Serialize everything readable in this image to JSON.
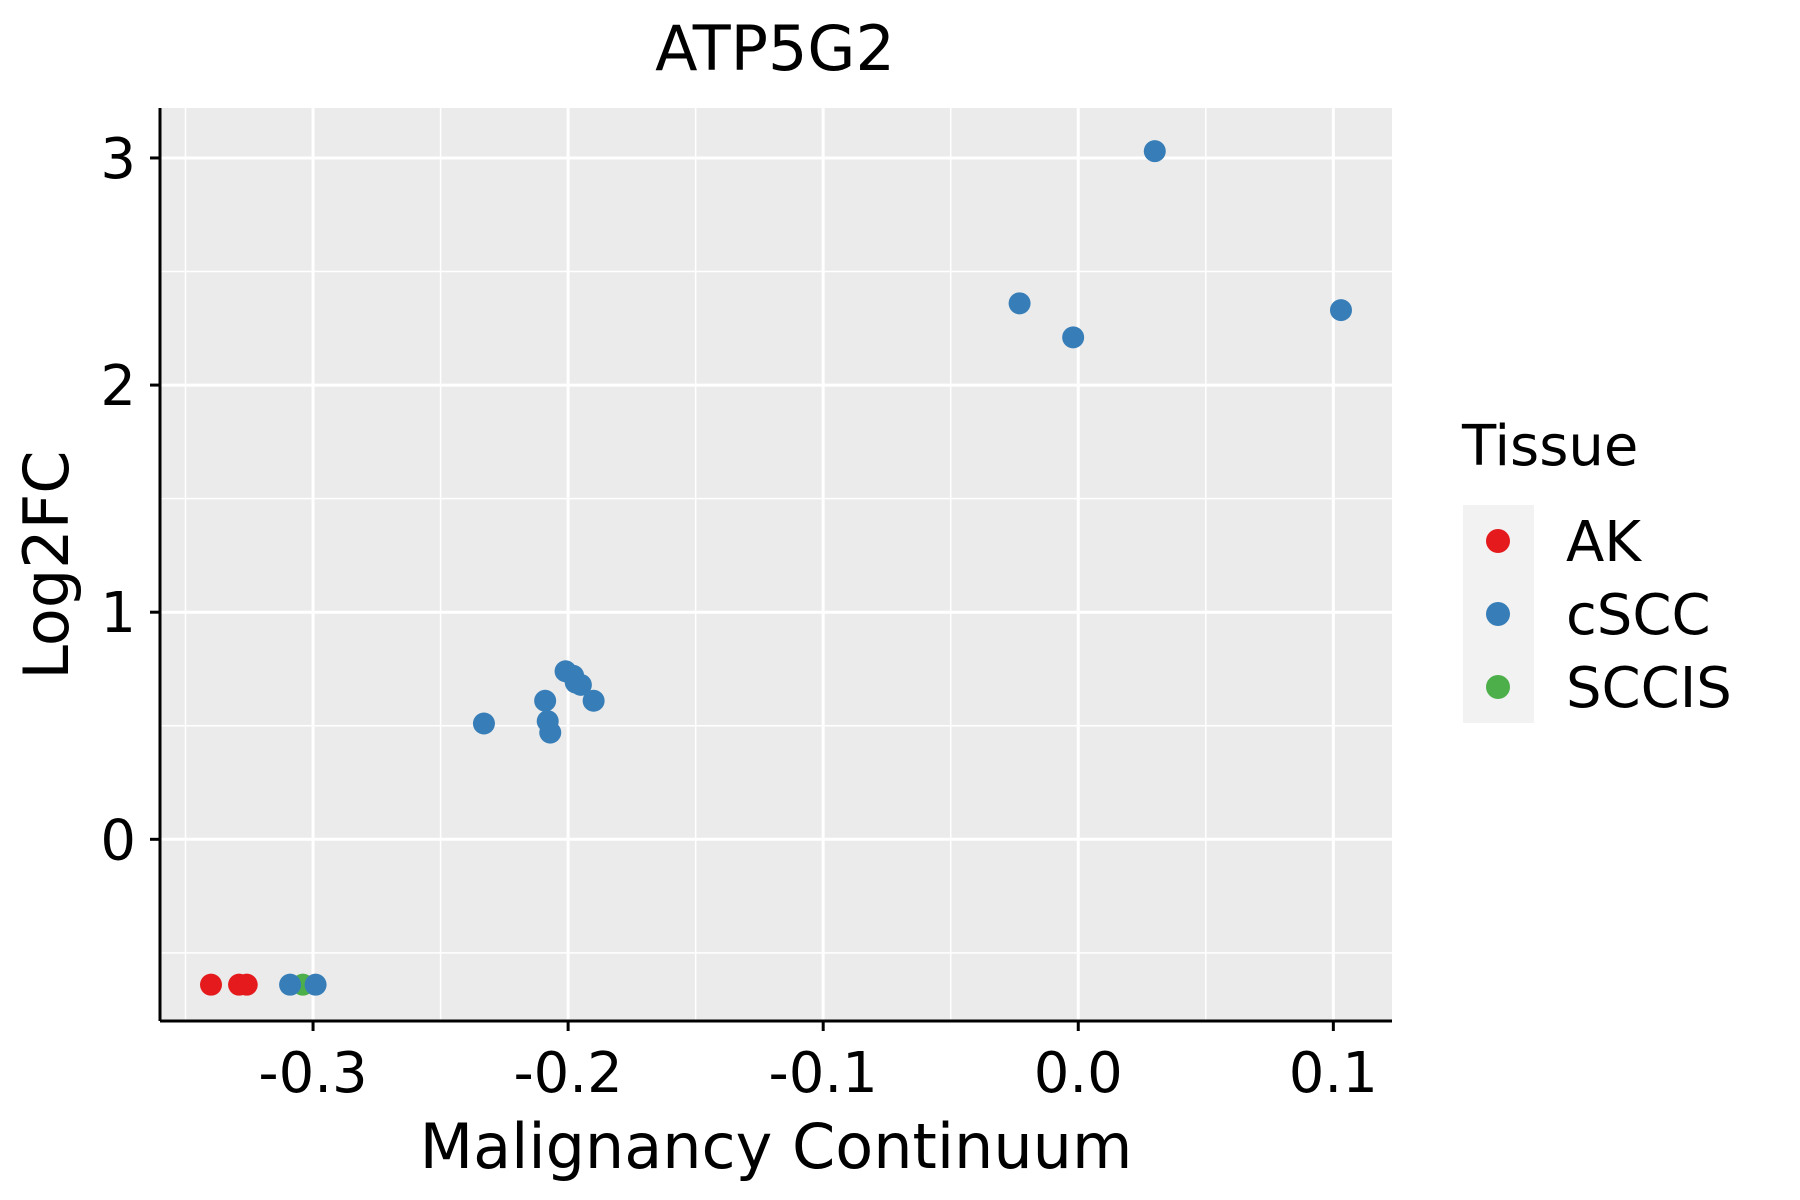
{
  "chart_data": {
    "type": "scatter",
    "title": "ATP5G2",
    "xlabel": "Malignancy Continuum",
    "ylabel": "Log2FC",
    "xlim": [
      -0.36,
      0.123
    ],
    "ylim": [
      -0.8,
      3.22
    ],
    "x_ticks": [
      -0.3,
      -0.2,
      -0.1,
      0.0,
      0.1
    ],
    "x_tick_labels": [
      "-0.3",
      "-0.2",
      "-0.1",
      "0.0",
      "0.1"
    ],
    "y_ticks": [
      0,
      1,
      2,
      3
    ],
    "y_tick_labels": [
      "0",
      "1",
      "2",
      "3"
    ],
    "grid": true,
    "legend": {
      "title": "Tissue",
      "position": "right",
      "entries": [
        {
          "label": "AK",
          "color": "#E41A1C"
        },
        {
          "label": "cSCC",
          "color": "#377EB8"
        },
        {
          "label": "SCCIS",
          "color": "#4DAF4A"
        }
      ]
    },
    "series": [
      {
        "name": "AK",
        "color": "#E41A1C",
        "points": [
          {
            "x": -0.34,
            "y": -0.64
          },
          {
            "x": -0.329,
            "y": -0.64
          },
          {
            "x": -0.326,
            "y": -0.64
          }
        ]
      },
      {
        "name": "SCCIS",
        "color": "#4DAF4A",
        "points": [
          {
            "x": -0.304,
            "y": -0.64
          }
        ]
      },
      {
        "name": "cSCC",
        "color": "#377EB8",
        "points": [
          {
            "x": -0.309,
            "y": -0.64
          },
          {
            "x": -0.299,
            "y": -0.64
          },
          {
            "x": -0.233,
            "y": 0.51
          },
          {
            "x": -0.209,
            "y": 0.61
          },
          {
            "x": -0.208,
            "y": 0.52
          },
          {
            "x": -0.207,
            "y": 0.47
          },
          {
            "x": -0.201,
            "y": 0.74
          },
          {
            "x": -0.198,
            "y": 0.72
          },
          {
            "x": -0.197,
            "y": 0.69
          },
          {
            "x": -0.195,
            "y": 0.68
          },
          {
            "x": -0.19,
            "y": 0.61
          },
          {
            "x": -0.023,
            "y": 2.36
          },
          {
            "x": -0.002,
            "y": 2.21
          },
          {
            "x": 0.03,
            "y": 3.03
          },
          {
            "x": 0.103,
            "y": 2.33
          }
        ]
      }
    ]
  }
}
